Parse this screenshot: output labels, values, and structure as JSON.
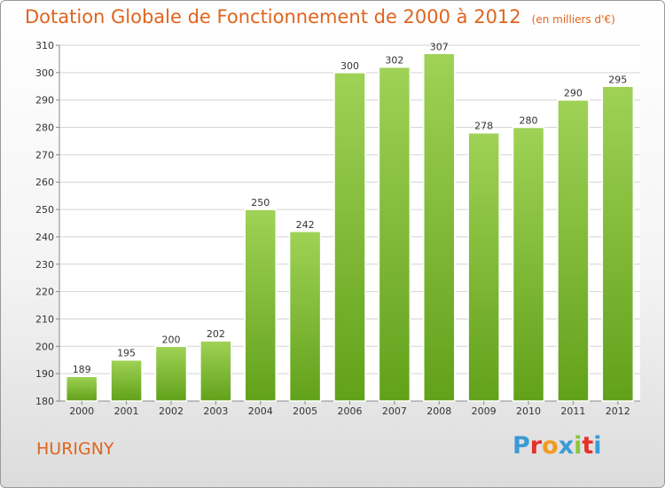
{
  "title": "Dotation Globale de Fonctionnement de 2000 à 2012",
  "unit": "(en milliers d'€)",
  "commune": "HURIGNY",
  "logo": {
    "letters": [
      "P",
      "r",
      "o",
      "x",
      "i",
      "t",
      "i"
    ],
    "colors": [
      "#3a9bd5",
      "#e5302a",
      "#f39a1e",
      "#3a9bd5",
      "#8cc43c",
      "#e5302a",
      "#3a9bd5"
    ]
  },
  "colors": {
    "title": "#e0641e",
    "bar_light": "#9fd256",
    "bar_dark": "#62a11a",
    "grid": "#d4d4d4"
  },
  "chart_data": {
    "type": "bar",
    "categories": [
      "2000",
      "2001",
      "2002",
      "2003",
      "2004",
      "2005",
      "2006",
      "2007",
      "2008",
      "2009",
      "2010",
      "2011",
      "2012"
    ],
    "values": [
      189,
      195,
      200,
      202,
      250,
      242,
      300,
      302,
      307,
      278,
      280,
      290,
      295
    ],
    "ylim": [
      180,
      310
    ],
    "yticks": [
      180,
      190,
      200,
      210,
      220,
      230,
      240,
      250,
      260,
      270,
      280,
      290,
      300,
      310
    ],
    "grid": true,
    "value_labels": true
  }
}
